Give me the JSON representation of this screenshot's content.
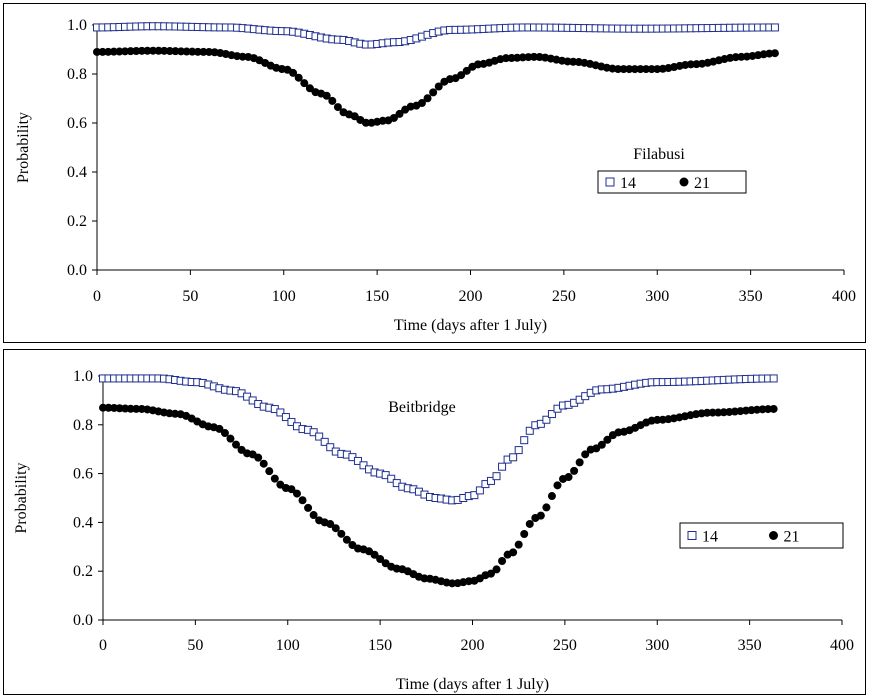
{
  "chart_data": [
    {
      "type": "scatter",
      "title": "Filabusi",
      "xlabel": "Time (days after 1 July)",
      "ylabel": "Probability",
      "xlim": [
        0,
        400
      ],
      "ylim": [
        0,
        1.0
      ],
      "x_ticks": [
        "0",
        "50",
        "100",
        "150",
        "200",
        "250",
        "300",
        "350",
        "400"
      ],
      "y_ticks": [
        "0.0",
        "0.2",
        "0.4",
        "0.6",
        "0.8",
        "1.0"
      ],
      "x_step": 3,
      "x_max": 364,
      "legend_placement": "middle-right",
      "series": [
        {
          "name": "14",
          "marker": "open-square",
          "color": "#1f2f8f",
          "knots": [
            [
              0,
              0.99
            ],
            [
              30,
              0.995
            ],
            [
              70,
              0.99
            ],
            [
              100,
              0.975
            ],
            [
              130,
              0.94
            ],
            [
              145,
              0.92
            ],
            [
              160,
              0.93
            ],
            [
              190,
              0.98
            ],
            [
              230,
              0.99
            ],
            [
              290,
              0.985
            ],
            [
              364,
              0.99
            ]
          ]
        },
        {
          "name": "21",
          "marker": "filled-circle",
          "color": "#000000",
          "knots": [
            [
              0,
              0.89
            ],
            [
              30,
              0.895
            ],
            [
              60,
              0.89
            ],
            [
              80,
              0.87
            ],
            [
              100,
              0.82
            ],
            [
              120,
              0.72
            ],
            [
              135,
              0.635
            ],
            [
              145,
              0.6
            ],
            [
              155,
              0.61
            ],
            [
              170,
              0.67
            ],
            [
              190,
              0.78
            ],
            [
              205,
              0.84
            ],
            [
              220,
              0.865
            ],
            [
              235,
              0.87
            ],
            [
              255,
              0.85
            ],
            [
              280,
              0.82
            ],
            [
              300,
              0.82
            ],
            [
              320,
              0.84
            ],
            [
              345,
              0.87
            ],
            [
              364,
              0.885
            ]
          ]
        }
      ]
    },
    {
      "type": "scatter",
      "title": "Beitbridge",
      "xlabel": "Time (days after 1 July)",
      "ylabel": "Probability",
      "xlim": [
        0,
        400
      ],
      "ylim": [
        0,
        1.0
      ],
      "x_ticks": [
        "0",
        "50",
        "100",
        "150",
        "200",
        "250",
        "300",
        "350",
        "400"
      ],
      "y_ticks": [
        "0.0",
        "0.2",
        "0.4",
        "0.6",
        "0.8",
        "1.0"
      ],
      "x_step": 3,
      "x_max": 364,
      "legend_placement": "middle-right",
      "series": [
        {
          "name": "14",
          "marker": "open-square",
          "color": "#1f2f8f",
          "knots": [
            [
              0,
              0.99
            ],
            [
              30,
              0.99
            ],
            [
              50,
              0.975
            ],
            [
              70,
              0.94
            ],
            [
              90,
              0.87
            ],
            [
              110,
              0.78
            ],
            [
              130,
              0.68
            ],
            [
              150,
              0.6
            ],
            [
              165,
              0.54
            ],
            [
              180,
              0.5
            ],
            [
              190,
              0.49
            ],
            [
              200,
              0.51
            ],
            [
              210,
              0.57
            ],
            [
              220,
              0.66
            ],
            [
              235,
              0.8
            ],
            [
              250,
              0.88
            ],
            [
              270,
              0.945
            ],
            [
              300,
              0.975
            ],
            [
              364,
              0.99
            ]
          ]
        },
        {
          "name": "21",
          "marker": "filled-circle",
          "color": "#000000",
          "knots": [
            [
              0,
              0.87
            ],
            [
              20,
              0.865
            ],
            [
              40,
              0.845
            ],
            [
              60,
              0.79
            ],
            [
              80,
              0.68
            ],
            [
              100,
              0.54
            ],
            [
              120,
              0.4
            ],
            [
              140,
              0.29
            ],
            [
              160,
              0.21
            ],
            [
              175,
              0.17
            ],
            [
              190,
              0.15
            ],
            [
              200,
              0.16
            ],
            [
              210,
              0.19
            ],
            [
              220,
              0.27
            ],
            [
              235,
              0.42
            ],
            [
              250,
              0.58
            ],
            [
              265,
              0.7
            ],
            [
              280,
              0.77
            ],
            [
              300,
              0.82
            ],
            [
              330,
              0.85
            ],
            [
              364,
              0.865
            ]
          ]
        }
      ]
    }
  ]
}
